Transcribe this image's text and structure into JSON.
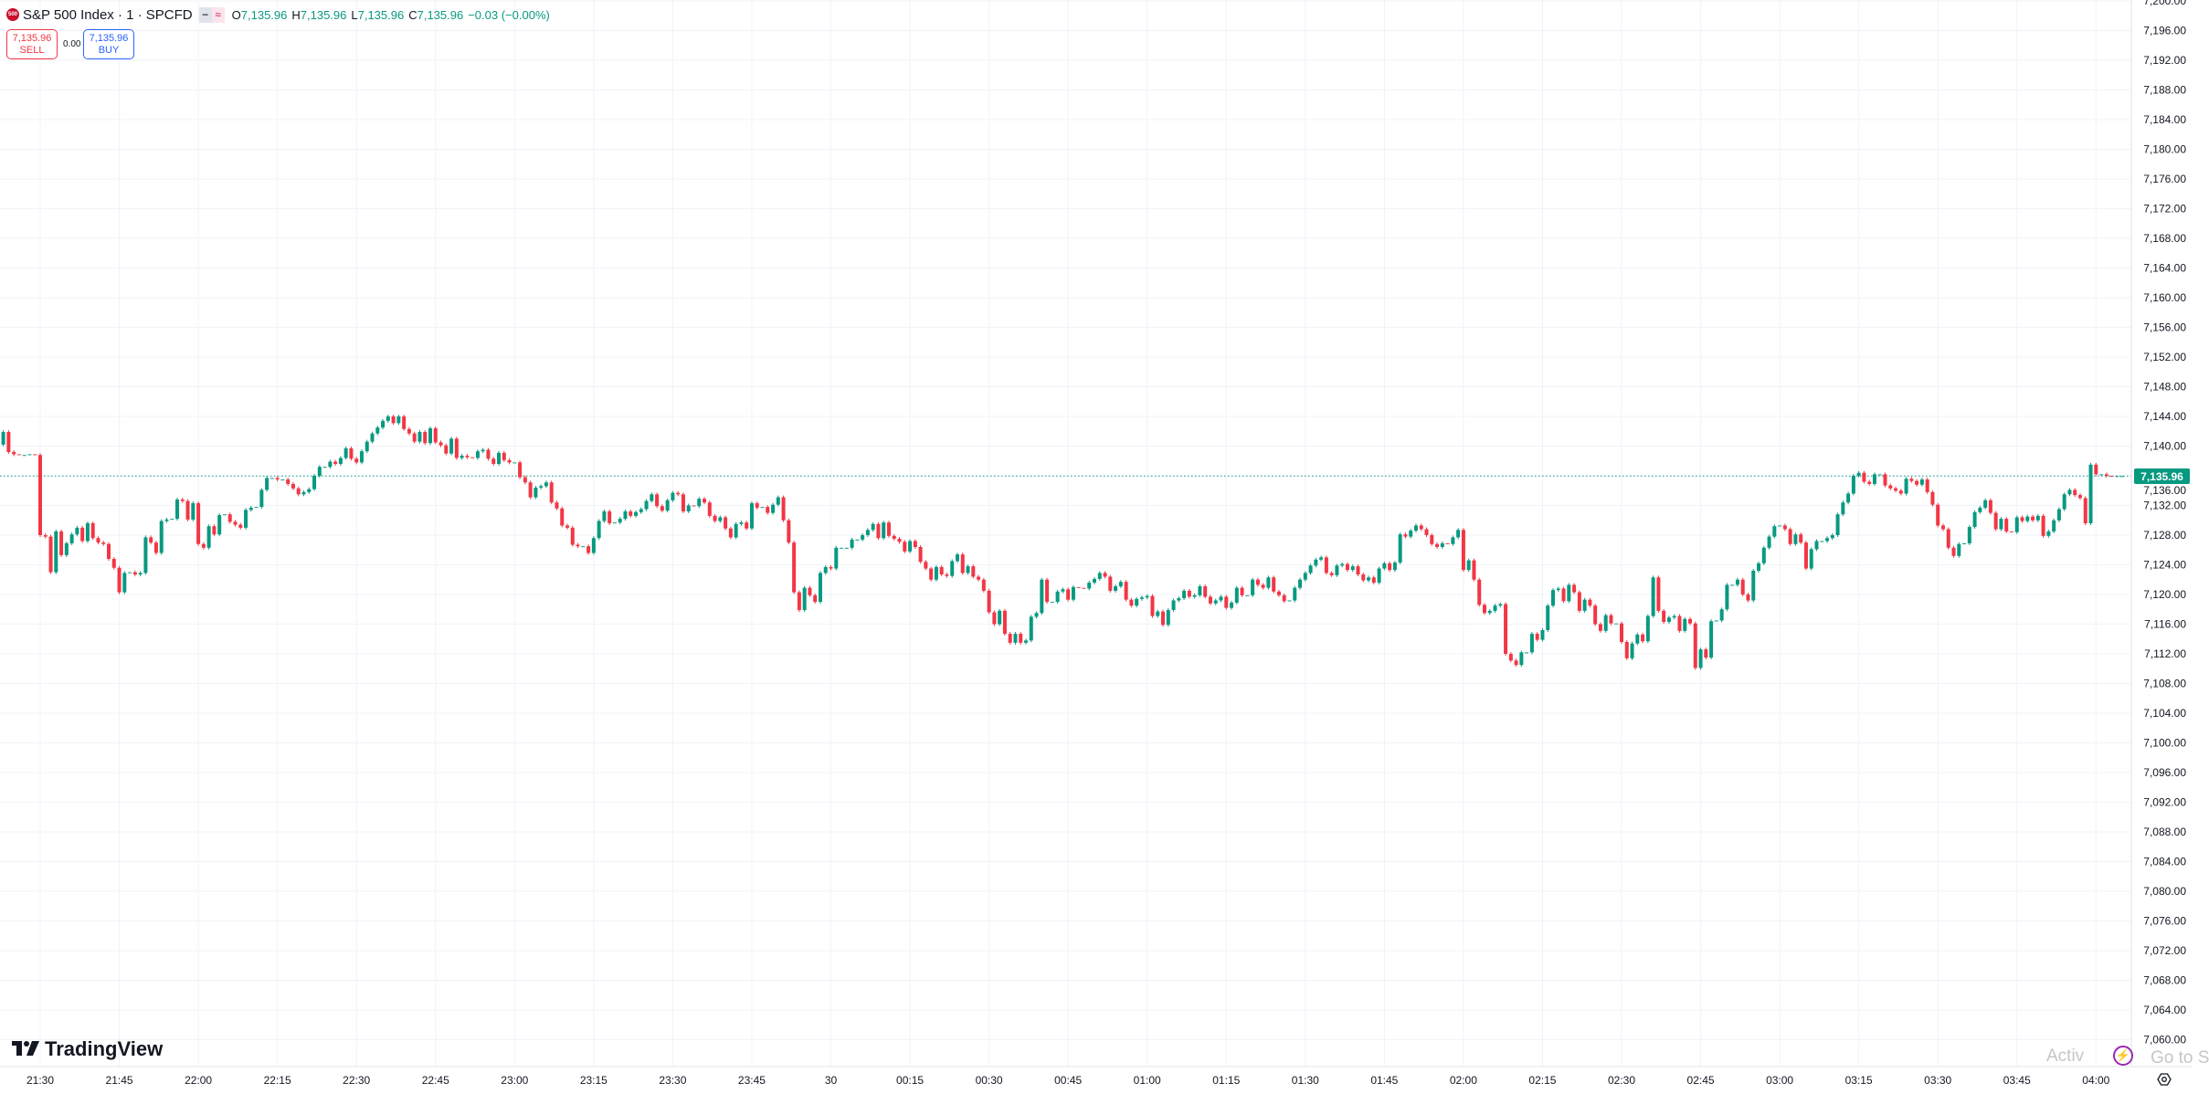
{
  "header": {
    "logo_text": "500",
    "title": "S&P 500 Index · 1 · SPCFD",
    "pill_left": "−",
    "pill_right": "≈",
    "ohlc": {
      "o_label": "O",
      "o": "7,135.96",
      "h_label": "H",
      "h": "7,135.96",
      "l_label": "L",
      "l": "7,135.96",
      "c_label": "C",
      "c": "7,135.96",
      "change": "−0.03 (−0.00%)"
    }
  },
  "trade": {
    "sell_price": "7,135.96",
    "sell_label": "SELL",
    "spread": "0.00",
    "buy_price": "7,135.96",
    "buy_label": "BUY"
  },
  "branding": {
    "logo_mark": "17",
    "logo_text": "TradingView"
  },
  "watermark": {
    "line1": "Activ",
    "line2": "Go to S"
  },
  "icons": {
    "bolt": "lightning-icon",
    "settings": "hexagon-settings-icon"
  },
  "colors": {
    "up": "#089981",
    "down": "#f23645",
    "grid": "#f0f3fa",
    "last_price": "#089981",
    "sell": "#f23645",
    "buy": "#2962ff"
  },
  "chart_data": {
    "type": "candlestick",
    "symbol": "S&P 500 Index",
    "interval_minutes": 1,
    "start_time": "21:23",
    "first_open": 7140.2,
    "closes": [
      7141.9,
      7139.2,
      7138.9,
      7138.8,
      7138.8,
      7138.9,
      7138.8,
      7128.0,
      7127.8,
      7123.0,
      7128.5,
      7125.3,
      7126.9,
      7128.1,
      7129.0,
      7127.2,
      7129.6,
      7127.6,
      7127.0,
      7126.8,
      7124.8,
      7123.6,
      7120.3,
      7122.9,
      7123.0,
      7122.7,
      7122.9,
      7127.7,
      7127.0,
      7125.6,
      7129.9,
      7130.1,
      7130.2,
      7132.8,
      7132.6,
      7130.1,
      7132.3,
      7126.8,
      7126.3,
      7129.2,
      7128.1,
      7130.7,
      7130.8,
      7129.8,
      7129.4,
      7129.0,
      7131.4,
      7131.7,
      7131.8,
      7134.1,
      7135.7,
      7135.7,
      7135.5,
      7135.5,
      7134.9,
      7134.3,
      7133.5,
      7133.8,
      7134.2,
      7136.0,
      7137.2,
      7137.2,
      7137.9,
      7137.6,
      7138.4,
      7139.7,
      7138.3,
      7137.8,
      7139.3,
      7140.6,
      7141.7,
      7142.5,
      7143.4,
      7144.0,
      7143.1,
      7144.0,
      7142.3,
      7141.7,
      7140.6,
      7141.9,
      7140.4,
      7142.4,
      7140.5,
      7140.1,
      7139.0,
      7141.0,
      7138.4,
      7138.7,
      7138.5,
      7138.4,
      7139.3,
      7139.5,
      7138.3,
      7137.6,
      7139.1,
      7138.1,
      7137.8,
      7137.8,
      7135.8,
      7135.1,
      7133.1,
      7134.4,
      7134.6,
      7135.1,
      7132.4,
      7131.6,
      7129.3,
      7129.0,
      7126.7,
      7126.5,
      7126.5,
      7125.6,
      7127.6,
      7129.9,
      7131.2,
      7129.6,
      7129.7,
      7130.2,
      7131.2,
      7130.6,
      7131.1,
      7131.5,
      7132.6,
      7133.5,
      7131.9,
      7131.3,
      7132.7,
      7133.7,
      7133.5,
      7131.2,
      7132.0,
      7131.9,
      7132.9,
      7132.4,
      7130.6,
      7129.9,
      7130.4,
      7128.9,
      7127.7,
      7129.5,
      7129.7,
      7128.9,
      7132.3,
      7131.7,
      7131.8,
      7131.0,
      7132.1,
      7133.1,
      7130.0,
      7127.0,
      7120.3,
      7117.9,
      7120.9,
      7119.9,
      7119.0,
      7122.9,
      7123.7,
      7123.5,
      7126.3,
      7126.3,
      7126.3,
      7127.4,
      7127.4,
      7128.0,
      7128.7,
      7129.5,
      7127.6,
      7129.7,
      7127.9,
      7127.5,
      7127.1,
      7125.8,
      7127.2,
      7126.4,
      7124.4,
      7123.5,
      7122.0,
      7123.7,
      7122.7,
      7122.5,
      7124.5,
      7125.4,
      7122.9,
      7123.8,
      7122.4,
      7122.0,
      7120.5,
      7117.6,
      7116.0,
      7117.8,
      7114.7,
      7113.5,
      7114.7,
      7113.5,
      7113.8,
      7117.0,
      7117.5,
      7122.0,
      7119.0,
      7119.0,
      7120.4,
      7120.7,
      7119.3,
      7121.0,
      7120.9,
      7120.8,
      7121.6,
      7122.1,
      7122.9,
      7122.4,
      7120.5,
      7121.1,
      7121.7,
      7119.3,
      7118.5,
      7119.4,
      7119.6,
      7119.8,
      7117.1,
      7117.7,
      7115.9,
      7117.9,
      7119.2,
      7119.5,
      7120.5,
      7119.7,
      7119.9,
      7121.1,
      7119.7,
      7118.8,
      7119.2,
      7119.7,
      7118.2,
      7118.9,
      7120.9,
      7119.9,
      7119.9,
      7122.0,
      7121.3,
      7120.9,
      7122.3,
      7120.4,
      7119.9,
      7119.1,
      7119.2,
      7120.9,
      7122.0,
      7122.9,
      7123.9,
      7124.7,
      7125.0,
      7122.9,
      7122.6,
      7123.9,
      7124.1,
      7123.3,
      7123.8,
      7122.7,
      7121.9,
      7122.3,
      7121.6,
      7123.5,
      7124.2,
      7123.3,
      7124.3,
      7128.1,
      7127.8,
      7128.6,
      7129.3,
      7128.8,
      7128.0,
      7126.8,
      7126.4,
      7126.9,
      7126.8,
      7127.7,
      7128.7,
      7123.3,
      7124.6,
      7122.0,
      7118.6,
      7117.5,
      7117.8,
      7118.5,
      7118.7,
      7112.0,
      7111.1,
      7110.5,
      7112.2,
      7112.2,
      7114.7,
      7113.9,
      7115.2,
      7118.5,
      7120.6,
      7120.8,
      7119.1,
      7121.3,
      7120.3,
      7117.8,
      7119.3,
      7118.5,
      7116.0,
      7115.1,
      7117.2,
      7116.1,
      7116.1,
      7113.6,
      7111.4,
      7113.4,
      7114.6,
      7113.7,
      7117.1,
      7122.3,
      7117.8,
      7116.3,
      7116.9,
      7117.1,
      7115.1,
      7116.7,
      7116.1,
      7110.1,
      7112.6,
      7111.5,
      7116.4,
      7116.5,
      7118.0,
      7121.3,
      7121.3,
      7122.0,
      7120.0,
      7119.2,
      7123.2,
      7124.2,
      7126.3,
      7127.8,
      7129.2,
      7129.3,
      7128.8,
      7126.8,
      7128.1,
      7127.0,
      7123.5,
      7126.1,
      7127.2,
      7127.2,
      7127.6,
      7128.0,
      7130.8,
      7132.4,
      7133.6,
      7136.0,
      7136.4,
      7135.2,
      7134.9,
      7136.2,
      7136.2,
      7134.7,
      7134.3,
      7134.0,
      7133.6,
      7135.6,
      7135.3,
      7134.8,
      7135.5,
      7133.8,
      7132.1,
      7129.3,
      7128.8,
      7126.3,
      7125.2,
      7126.8,
      7126.9,
      7129.1,
      7131.1,
      7131.7,
      7132.7,
      7131.0,
      7128.8,
      7130.2,
      7128.5,
      7128.4,
      7130.4,
      7129.9,
      7130.5,
      7130.0,
      7130.6,
      7127.9,
      7128.5,
      7130.0,
      7131.5,
      7133.5,
      7134.1,
      7133.4,
      7133.0,
      7129.6,
      7137.5,
      7136.2,
      7136.2,
      7136.0,
      7135.96,
      7135.96,
      7135.96
    ],
    "last_price": 7135.96,
    "last_price_label": "7,135.96",
    "ylim": [
      7060,
      7200
    ],
    "y_ticks": [
      "7,200.00",
      "7,196.00",
      "7,192.00",
      "7,188.00",
      "7,184.00",
      "7,180.00",
      "7,176.00",
      "7,172.00",
      "7,168.00",
      "7,164.00",
      "7,160.00",
      "7,156.00",
      "7,152.00",
      "7,148.00",
      "7,144.00",
      "7,140.00",
      "7,136.00",
      "7,132.00",
      "7,128.00",
      "7,124.00",
      "7,120.00",
      "7,116.00",
      "7,112.00",
      "7,108.00",
      "7,104.00",
      "7,100.00",
      "7,096.00",
      "7,092.00",
      "7,088.00",
      "7,084.00",
      "7,080.00",
      "7,076.00",
      "7,072.00",
      "7,068.00",
      "7,064.00",
      "7,060.00"
    ],
    "x_ticks": [
      "21:30",
      "21:45",
      "22:00",
      "22:15",
      "22:30",
      "22:45",
      "23:00",
      "23:15",
      "23:30",
      "23:45",
      "30",
      "00:15",
      "00:30",
      "00:45",
      "01:00",
      "01:15",
      "01:30",
      "01:45",
      "02:00",
      "02:15",
      "02:30",
      "02:45",
      "03:00",
      "03:15",
      "03:30",
      "03:45",
      "04:00"
    ],
    "grid": true
  }
}
